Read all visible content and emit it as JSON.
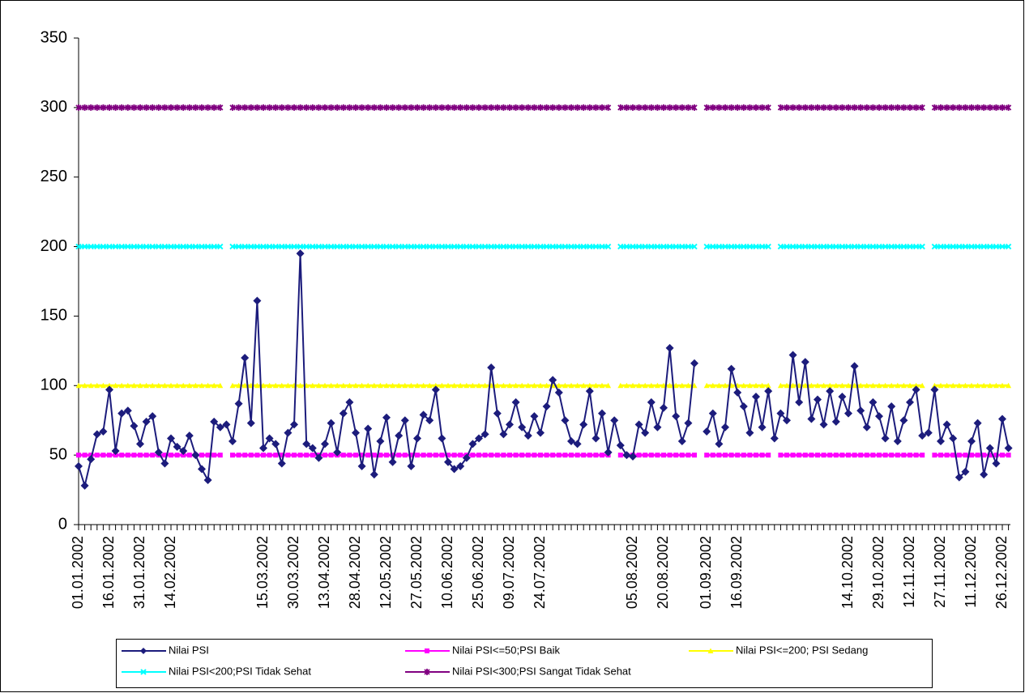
{
  "chart_data": {
    "type": "line",
    "categories": [
      "01.01.2002",
      null,
      null,
      null,
      null,
      "16.01.2002",
      null,
      null,
      null,
      null,
      "31.01.2002",
      null,
      null,
      null,
      null,
      "14.02.2002",
      null,
      null,
      null,
      null,
      null,
      null,
      null,
      null,
      null,
      null,
      null,
      null,
      null,
      null,
      "15.03.2002",
      null,
      null,
      null,
      null,
      "30.03.2002",
      null,
      null,
      null,
      null,
      "13.04.2002",
      null,
      null,
      null,
      null,
      "28.04.2002",
      null,
      null,
      null,
      null,
      "12.05.2002",
      null,
      null,
      null,
      null,
      "27.05.2002",
      null,
      null,
      null,
      null,
      "10.06.2002",
      null,
      null,
      null,
      null,
      "25.06.2002",
      null,
      null,
      null,
      null,
      "09.07.2002",
      null,
      null,
      null,
      null,
      "24.07.2002",
      null,
      null,
      null,
      null,
      null,
      null,
      null,
      null,
      null,
      null,
      null,
      null,
      null,
      null,
      "05.08.2002",
      null,
      null,
      null,
      null,
      "20.08.2002",
      null,
      null,
      null,
      null,
      null,
      null,
      "01.09.2002",
      null,
      null,
      null,
      null,
      "16.09.2002",
      null,
      null,
      null,
      null,
      null,
      null,
      null,
      null,
      null,
      null,
      null,
      null,
      null,
      null,
      null,
      null,
      null,
      "14.10.2002",
      null,
      null,
      null,
      null,
      "29.10.2002",
      null,
      null,
      null,
      null,
      "12.11.2002",
      null,
      null,
      null,
      null,
      "27.11.2002",
      null,
      null,
      null,
      null,
      "11.12.2002",
      null,
      null,
      null,
      null,
      "26.12.2002",
      null
    ],
    "series": [
      {
        "name": "Nilai PSI",
        "color": "#1c1c7c",
        "marker": "diamond",
        "values": [
          42,
          28,
          47,
          65,
          67,
          97,
          53,
          80,
          82,
          71,
          58,
          74,
          78,
          52,
          44,
          62,
          56,
          53,
          64,
          50,
          40,
          32,
          74,
          70,
          72,
          60,
          87,
          120,
          73,
          161,
          55,
          62,
          58,
          44,
          66,
          72,
          195,
          58,
          55,
          48,
          58,
          73,
          52,
          80,
          88,
          66,
          42,
          69,
          36,
          60,
          77,
          45,
          64,
          75,
          42,
          62,
          79,
          75,
          97,
          62,
          45,
          40,
          42,
          48,
          58,
          62,
          65,
          113,
          80,
          65,
          72,
          88,
          70,
          64,
          78,
          66,
          85,
          104,
          95,
          75,
          60,
          58,
          72,
          96,
          62,
          80,
          52,
          75,
          57,
          50,
          49,
          72,
          66,
          88,
          70,
          84,
          127,
          78,
          60,
          73,
          116,
          null,
          67,
          80,
          58,
          70,
          112,
          95,
          85,
          66,
          92,
          70,
          96,
          62,
          80,
          75,
          122,
          88,
          117,
          76,
          90,
          72,
          96,
          74,
          92,
          80,
          114,
          82,
          70,
          88,
          78,
          62,
          85,
          60,
          75,
          88,
          97,
          64,
          66,
          97,
          60,
          72,
          62,
          34,
          38,
          60,
          73,
          36,
          55,
          44,
          76,
          55
        ]
      },
      {
        "name": "Nilai PSI<=50;PSI Baik",
        "color": "#ff00ff",
        "marker": "square",
        "values": [
          50,
          50,
          50,
          50,
          50,
          50,
          50,
          50,
          50,
          50,
          50,
          50,
          50,
          50,
          50,
          50,
          50,
          50,
          50,
          50,
          50,
          50,
          50,
          50,
          null,
          50,
          50,
          50,
          50,
          50,
          50,
          50,
          50,
          50,
          50,
          50,
          50,
          50,
          50,
          50,
          50,
          50,
          50,
          50,
          50,
          50,
          50,
          50,
          50,
          50,
          50,
          50,
          50,
          50,
          50,
          50,
          50,
          50,
          50,
          50,
          50,
          50,
          50,
          50,
          50,
          50,
          50,
          50,
          50,
          50,
          50,
          50,
          50,
          50,
          50,
          50,
          50,
          50,
          50,
          50,
          50,
          50,
          50,
          50,
          50,
          50,
          50,
          null,
          50,
          50,
          50,
          50,
          50,
          50,
          50,
          50,
          50,
          50,
          50,
          50,
          50,
          null,
          50,
          50,
          50,
          50,
          50,
          50,
          50,
          50,
          50,
          50,
          50,
          null,
          50,
          50,
          50,
          50,
          50,
          50,
          50,
          50,
          50,
          50,
          50,
          50,
          50,
          50,
          50,
          50,
          50,
          50,
          50,
          50,
          50,
          50,
          50,
          50,
          null,
          50,
          50,
          50,
          50,
          50,
          50,
          50,
          50,
          50,
          50,
          50,
          50,
          50
        ]
      },
      {
        "name": "Nilai PSI<=200; PSI Sedang",
        "color": "#ffff00",
        "marker": "triangle",
        "values": [
          100,
          100,
          100,
          100,
          100,
          100,
          100,
          100,
          100,
          100,
          100,
          100,
          100,
          100,
          100,
          100,
          100,
          100,
          100,
          100,
          100,
          100,
          100,
          100,
          null,
          100,
          100,
          100,
          100,
          100,
          100,
          100,
          100,
          100,
          100,
          100,
          100,
          100,
          100,
          100,
          100,
          100,
          100,
          100,
          100,
          100,
          100,
          100,
          100,
          100,
          100,
          100,
          100,
          100,
          100,
          100,
          100,
          100,
          100,
          100,
          100,
          100,
          100,
          100,
          100,
          100,
          100,
          100,
          100,
          100,
          100,
          100,
          100,
          100,
          100,
          100,
          100,
          100,
          100,
          100,
          100,
          100,
          100,
          100,
          100,
          100,
          100,
          null,
          100,
          100,
          100,
          100,
          100,
          100,
          100,
          100,
          100,
          100,
          100,
          100,
          100,
          null,
          100,
          100,
          100,
          100,
          100,
          100,
          100,
          100,
          100,
          100,
          100,
          null,
          100,
          100,
          100,
          100,
          100,
          100,
          100,
          100,
          100,
          100,
          100,
          100,
          100,
          100,
          100,
          100,
          100,
          100,
          100,
          100,
          100,
          100,
          100,
          100,
          null,
          100,
          100,
          100,
          100,
          100,
          100,
          100,
          100,
          100,
          100,
          100,
          100,
          100
        ]
      },
      {
        "name": "Nilai PSI<200;PSI Tidak Sehat",
        "color": "#00ffff",
        "marker": "x",
        "values": [
          200,
          200,
          200,
          200,
          200,
          200,
          200,
          200,
          200,
          200,
          200,
          200,
          200,
          200,
          200,
          200,
          200,
          200,
          200,
          200,
          200,
          200,
          200,
          200,
          null,
          200,
          200,
          200,
          200,
          200,
          200,
          200,
          200,
          200,
          200,
          200,
          200,
          200,
          200,
          200,
          200,
          200,
          200,
          200,
          200,
          200,
          200,
          200,
          200,
          200,
          200,
          200,
          200,
          200,
          200,
          200,
          200,
          200,
          200,
          200,
          200,
          200,
          200,
          200,
          200,
          200,
          200,
          200,
          200,
          200,
          200,
          200,
          200,
          200,
          200,
          200,
          200,
          200,
          200,
          200,
          200,
          200,
          200,
          200,
          200,
          200,
          200,
          null,
          200,
          200,
          200,
          200,
          200,
          200,
          200,
          200,
          200,
          200,
          200,
          200,
          200,
          null,
          200,
          200,
          200,
          200,
          200,
          200,
          200,
          200,
          200,
          200,
          200,
          null,
          200,
          200,
          200,
          200,
          200,
          200,
          200,
          200,
          200,
          200,
          200,
          200,
          200,
          200,
          200,
          200,
          200,
          200,
          200,
          200,
          200,
          200,
          200,
          200,
          null,
          200,
          200,
          200,
          200,
          200,
          200,
          200,
          200,
          200,
          200,
          200,
          200,
          200
        ]
      },
      {
        "name": "Nilai PSI<300;PSI Sangat Tidak Sehat",
        "color": "#800080",
        "marker": "star",
        "values": [
          300,
          300,
          300,
          300,
          300,
          300,
          300,
          300,
          300,
          300,
          300,
          300,
          300,
          300,
          300,
          300,
          300,
          300,
          300,
          300,
          300,
          300,
          300,
          300,
          null,
          300,
          300,
          300,
          300,
          300,
          300,
          300,
          300,
          300,
          300,
          300,
          300,
          300,
          300,
          300,
          300,
          300,
          300,
          300,
          300,
          300,
          300,
          300,
          300,
          300,
          300,
          300,
          300,
          300,
          300,
          300,
          300,
          300,
          300,
          300,
          300,
          300,
          300,
          300,
          300,
          300,
          300,
          300,
          300,
          300,
          300,
          300,
          300,
          300,
          300,
          300,
          300,
          300,
          300,
          300,
          300,
          300,
          300,
          300,
          300,
          300,
          300,
          null,
          300,
          300,
          300,
          300,
          300,
          300,
          300,
          300,
          300,
          300,
          300,
          300,
          300,
          null,
          300,
          300,
          300,
          300,
          300,
          300,
          300,
          300,
          300,
          300,
          300,
          null,
          300,
          300,
          300,
          300,
          300,
          300,
          300,
          300,
          300,
          300,
          300,
          300,
          300,
          300,
          300,
          300,
          300,
          300,
          300,
          300,
          300,
          300,
          300,
          300,
          null,
          300,
          300,
          300,
          300,
          300,
          300,
          300,
          300,
          300,
          300,
          300,
          300,
          300
        ]
      }
    ],
    "ylim": [
      0,
      350
    ],
    "yticks": [
      0,
      50,
      100,
      150,
      200,
      250,
      300,
      350
    ],
    "grid": false
  }
}
